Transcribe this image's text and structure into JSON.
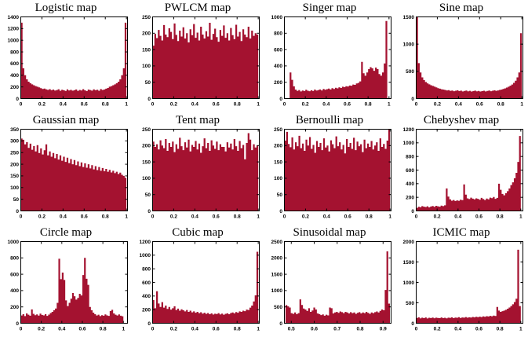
{
  "figure": {
    "background": "#ffffff",
    "bar_color": "#a41230",
    "axis_color": "#000000",
    "grid": {
      "rows": 3,
      "columns": 4
    }
  },
  "chart_data": [
    {
      "type": "bar",
      "title": "Logistic map",
      "ylim": [
        0,
        1400
      ],
      "yticks": [
        0,
        200,
        400,
        600,
        800,
        1000,
        1200,
        1400
      ],
      "xticks": [
        0,
        0.2,
        0.4,
        0.6,
        0.8,
        1
      ],
      "xtick_labels": [
        "0",
        "0.2",
        "0.4",
        "0.6",
        "0.8",
        "1"
      ],
      "xlim": [
        0,
        1.01
      ],
      "data_range": [
        0,
        1
      ],
      "legend": "none",
      "grid_on": false,
      "values": [
        1300,
        520,
        400,
        330,
        290,
        262,
        244,
        228,
        214,
        204,
        192,
        178,
        165,
        172,
        158,
        149,
        162,
        144,
        155,
        138,
        147,
        160,
        135,
        152,
        143,
        131,
        158,
        140,
        149,
        136,
        145,
        157,
        133,
        148,
        139,
        161,
        142,
        130,
        154,
        146,
        137,
        159,
        144,
        151,
        135,
        163,
        148,
        156,
        170,
        182,
        204,
        214,
        228,
        244,
        262,
        290,
        330,
        400,
        520,
        1300
      ]
    },
    {
      "type": "bar",
      "title": "PWLCM map",
      "ylim": [
        0,
        250
      ],
      "yticks": [
        0,
        50,
        100,
        150,
        200,
        250
      ],
      "xticks": [
        0,
        0.2,
        0.4,
        0.6,
        0.8,
        1
      ],
      "xtick_labels": [
        "0",
        "0.2",
        "0.4",
        "0.6",
        "0.8",
        "1"
      ],
      "xlim": [
        0,
        1.01
      ],
      "data_range": [
        0,
        1
      ],
      "legend": "none",
      "grid_on": false,
      "values": [
        162,
        198,
        185,
        210,
        192,
        178,
        225,
        196,
        188,
        215,
        204,
        182,
        230,
        195,
        176,
        208,
        190,
        218,
        184,
        200,
        172,
        212,
        194,
        228,
        186,
        202,
        178,
        220,
        196,
        184,
        206,
        190,
        232,
        180,
        198,
        214,
        188,
        174,
        210,
        192,
        224,
        186,
        200,
        178,
        216,
        194,
        182,
        226,
        190,
        204,
        176,
        212,
        196,
        188,
        220,
        184,
        208,
        192,
        200,
        196
      ]
    },
    {
      "type": "bar",
      "title": "Singer map",
      "ylim": [
        0,
        1000
      ],
      "yticks": [
        0,
        200,
        400,
        600,
        800,
        1000
      ],
      "xticks": [
        0,
        0.2,
        0.4,
        0.6,
        0.8,
        1
      ],
      "xtick_labels": [
        "0",
        "0.2",
        "0.4",
        "0.6",
        "0.8",
        "1"
      ],
      "xlim": [
        0,
        1.02
      ],
      "data_range": [
        0,
        1
      ],
      "legend": "none",
      "grid_on": false,
      "values": [
        0,
        0,
        0,
        320,
        230,
        150,
        110,
        95,
        105,
        88,
        98,
        92,
        108,
        96,
        90,
        102,
        94,
        110,
        98,
        105,
        112,
        100,
        118,
        108,
        115,
        122,
        112,
        128,
        118,
        132,
        125,
        138,
        130,
        145,
        140,
        152,
        148,
        160,
        158,
        172,
        168,
        185,
        192,
        210,
        450,
        310,
        280,
        320,
        360,
        385,
        370,
        340,
        380,
        360,
        300,
        280,
        320,
        430,
        950,
        0
      ]
    },
    {
      "type": "bar",
      "title": "Sine map",
      "ylim": [
        0,
        1500
      ],
      "yticks": [
        0,
        500,
        1000,
        1500
      ],
      "xticks": [
        0,
        0.2,
        0.4,
        0.6,
        0.8,
        1
      ],
      "xtick_labels": [
        "0",
        "0.2",
        "0.4",
        "0.6",
        "0.8",
        "1"
      ],
      "xlim": [
        0,
        1.01
      ],
      "data_range": [
        0,
        1
      ],
      "legend": "none",
      "grid_on": false,
      "values": [
        1500,
        650,
        480,
        390,
        340,
        305,
        280,
        262,
        246,
        232,
        220,
        205,
        192,
        182,
        172,
        165,
        158,
        150,
        155,
        142,
        148,
        136,
        144,
        152,
        138,
        146,
        132,
        140,
        148,
        134,
        142,
        130,
        138,
        146,
        133,
        141,
        129,
        137,
        145,
        132,
        140,
        148,
        136,
        144,
        152,
        142,
        150,
        158,
        166,
        176,
        188,
        202,
        218,
        236,
        258,
        288,
        328,
        390,
        480,
        1200
      ]
    },
    {
      "type": "bar",
      "title": "Gaussian map",
      "ylim": [
        0,
        350
      ],
      "yticks": [
        0,
        50,
        100,
        150,
        200,
        250,
        300,
        350
      ],
      "xticks": [
        0,
        0.2,
        0.4,
        0.6,
        0.8,
        1
      ],
      "xtick_labels": [
        "0",
        "0.2",
        "0.4",
        "0.6",
        "0.8",
        "1"
      ],
      "xlim": [
        0,
        1.01
      ],
      "data_range": [
        0,
        1
      ],
      "legend": "none",
      "grid_on": false,
      "values": [
        310,
        305,
        285,
        295,
        270,
        288,
        262,
        278,
        255,
        282,
        248,
        268,
        242,
        260,
        285,
        238,
        255,
        232,
        248,
        226,
        244,
        220,
        238,
        215,
        232,
        210,
        228,
        205,
        222,
        200,
        218,
        196,
        212,
        192,
        208,
        188,
        204,
        185,
        200,
        182,
        196,
        178,
        192,
        175,
        188,
        172,
        184,
        170,
        180,
        168,
        176,
        165,
        172,
        162,
        168,
        158,
        164,
        155,
        150,
        142
      ]
    },
    {
      "type": "bar",
      "title": "Tent map",
      "ylim": [
        0,
        250
      ],
      "yticks": [
        0,
        50,
        100,
        150,
        200,
        250
      ],
      "xticks": [
        0,
        0.2,
        0.4,
        0.6,
        0.8,
        1
      ],
      "xtick_labels": [
        "0",
        "0.2",
        "0.4",
        "0.6",
        "0.8",
        "1"
      ],
      "xlim": [
        0,
        1.01
      ],
      "data_range": [
        0,
        1
      ],
      "legend": "none",
      "grid_on": false,
      "values": [
        212,
        196,
        204,
        188,
        216,
        200,
        192,
        220,
        184,
        208,
        196,
        212,
        180,
        204,
        190,
        224,
        198,
        186,
        210,
        194,
        218,
        182,
        202,
        196,
        214,
        188,
        206,
        178,
        198,
        222,
        192,
        208,
        184,
        216,
        200,
        190,
        212,
        186,
        204,
        196,
        196,
        182,
        210,
        194,
        206,
        188,
        220,
        198,
        184,
        214,
        192,
        202,
        158,
        208,
        238,
        218,
        186,
        204,
        194,
        200
      ]
    },
    {
      "type": "bar",
      "title": "Bernoulli map",
      "ylim": [
        0,
        250
      ],
      "yticks": [
        0,
        50,
        100,
        150,
        200,
        250
      ],
      "xticks": [
        0,
        0.2,
        0.4,
        0.6,
        0.8,
        1
      ],
      "xtick_labels": [
        "0",
        "0.2",
        "0.4",
        "0.6",
        "0.8",
        "1"
      ],
      "xlim": [
        0,
        1.01
      ],
      "data_range": [
        0,
        1
      ],
      "legend": "none",
      "grid_on": false,
      "values": [
        215,
        242,
        205,
        195,
        225,
        188,
        210,
        198,
        230,
        192,
        206,
        184,
        218,
        200,
        226,
        190,
        202,
        178,
        214,
        196,
        208,
        186,
        222,
        194,
        200,
        182,
        216,
        204,
        192,
        228,
        198,
        210,
        188,
        202,
        176,
        220,
        196,
        208,
        190,
        224,
        186,
        212,
        198,
        204,
        180,
        218,
        192,
        206,
        196,
        214,
        188,
        200,
        210,
        184,
        222,
        196,
        205,
        190,
        215,
        250
      ]
    },
    {
      "type": "bar",
      "title": "Chebyshev map",
      "ylim": [
        0,
        1200
      ],
      "yticks": [
        0,
        200,
        400,
        600,
        800,
        1000,
        1200
      ],
      "xticks": [
        0,
        0.2,
        0.4,
        0.6,
        0.8,
        1
      ],
      "xtick_labels": [
        "0",
        "0.2",
        "0.4",
        "0.6",
        "0.8",
        "1"
      ],
      "xlim": [
        0,
        1.02
      ],
      "data_range": [
        0,
        1
      ],
      "legend": "none",
      "grid_on": false,
      "values": [
        45,
        60,
        55,
        70,
        62,
        58,
        68,
        52,
        65,
        72,
        60,
        75,
        68,
        62,
        78,
        70,
        82,
        330,
        210,
        170,
        150,
        160,
        145,
        155,
        148,
        165,
        158,
        390,
        240,
        185,
        175,
        195,
        180,
        170,
        185,
        178,
        165,
        192,
        175,
        160,
        182,
        170,
        195,
        188,
        205,
        178,
        192,
        400,
        310,
        250,
        230,
        260,
        290,
        330,
        380,
        420,
        480,
        560,
        720,
        1100
      ]
    },
    {
      "type": "bar",
      "title": "Circle map",
      "ylim": [
        0,
        1000
      ],
      "yticks": [
        0,
        200,
        400,
        600,
        800,
        1000
      ],
      "xticks": [
        0,
        0.2,
        0.4,
        0.6,
        0.8,
        1
      ],
      "xtick_labels": [
        "0",
        "0.2",
        "0.4",
        "0.6",
        "0.8",
        "1"
      ],
      "xlim": [
        0,
        1.04
      ],
      "data_range": [
        0,
        1
      ],
      "legend": "none",
      "grid_on": false,
      "values": [
        95,
        110,
        88,
        120,
        105,
        92,
        170,
        115,
        98,
        108,
        94,
        118,
        102,
        96,
        112,
        90,
        106,
        125,
        140,
        160,
        180,
        250,
        790,
        540,
        620,
        530,
        280,
        210,
        250,
        300,
        370,
        330,
        290,
        310,
        360,
        340,
        590,
        800,
        545,
        470,
        200,
        160,
        130,
        110,
        95,
        105,
        88,
        98,
        92,
        108,
        96,
        90,
        150,
        165,
        120,
        105,
        95,
        108,
        92,
        85
      ]
    },
    {
      "type": "bar",
      "title": "Cubic map",
      "ylim": [
        0,
        1200
      ],
      "yticks": [
        0,
        200,
        400,
        600,
        800,
        1000,
        1200
      ],
      "xticks": [
        0,
        0.2,
        0.4,
        0.6,
        0.8,
        1
      ],
      "xtick_labels": [
        "0",
        "0.2",
        "0.4",
        "0.6",
        "0.8",
        "1"
      ],
      "xlim": [
        0,
        1.01
      ],
      "data_range": [
        0,
        1
      ],
      "legend": "none",
      "grid_on": false,
      "values": [
        340,
        220,
        470,
        290,
        240,
        310,
        230,
        260,
        210,
        240,
        200,
        220,
        250,
        195,
        215,
        185,
        205,
        190,
        175,
        195,
        168,
        185,
        160,
        175,
        155,
        168,
        148,
        162,
        142,
        155,
        138,
        150,
        132,
        145,
        128,
        140,
        135,
        148,
        130,
        142,
        125,
        138,
        145,
        132,
        150,
        158,
        145,
        165,
        155,
        175,
        168,
        185,
        178,
        200,
        195,
        230,
        260,
        320,
        410,
        1050
      ]
    },
    {
      "type": "bar",
      "title": "Sinusoidal map",
      "ylim": [
        0,
        2500
      ],
      "yticks": [
        0,
        500,
        1000,
        1500,
        2000,
        2500
      ],
      "xticks": [
        0.5,
        0.6,
        0.7,
        0.8,
        0.9
      ],
      "xtick_labels": [
        "0.5",
        "0.6",
        "0.7",
        "0.8",
        "0.9"
      ],
      "xlim": [
        0.47,
        0.935
      ],
      "data_range": [
        0.475,
        0.93
      ],
      "legend": "none",
      "grid_on": false,
      "values": [
        555,
        520,
        480,
        310,
        290,
        330,
        280,
        310,
        730,
        560,
        450,
        420,
        380,
        460,
        350,
        390,
        480,
        420,
        300,
        280,
        250,
        270,
        230,
        260,
        240,
        480,
        460,
        300,
        330,
        350,
        320,
        360,
        340,
        310,
        350,
        330,
        300,
        340,
        310,
        330,
        290,
        320,
        340,
        300,
        330,
        310,
        350,
        320,
        290,
        330,
        310,
        340,
        360,
        330,
        380,
        420,
        400,
        1020,
        2200,
        600
      ]
    },
    {
      "type": "bar",
      "title": "ICMIC map",
      "ylim": [
        0,
        2000
      ],
      "yticks": [
        0,
        500,
        1000,
        1500,
        2000
      ],
      "xticks": [
        0,
        0.2,
        0.4,
        0.6,
        0.8,
        1
      ],
      "xtick_labels": [
        "0",
        "0.2",
        "0.4",
        "0.6",
        "0.8",
        "1"
      ],
      "xlim": [
        0,
        1.02
      ],
      "data_range": [
        0,
        1
      ],
      "legend": "none",
      "grid_on": false,
      "values": [
        130,
        145,
        120,
        138,
        125,
        142,
        118,
        135,
        128,
        140,
        122,
        136,
        130,
        125,
        142,
        128,
        135,
        120,
        138,
        132,
        145,
        126,
        140,
        134,
        148,
        130,
        142,
        136,
        152,
        138,
        146,
        140,
        155,
        144,
        158,
        148,
        162,
        152,
        168,
        158,
        172,
        165,
        180,
        170,
        188,
        178,
        400,
        310,
        280,
        295,
        310,
        330,
        355,
        385,
        420,
        465,
        520,
        600,
        1800,
        420
      ]
    }
  ]
}
